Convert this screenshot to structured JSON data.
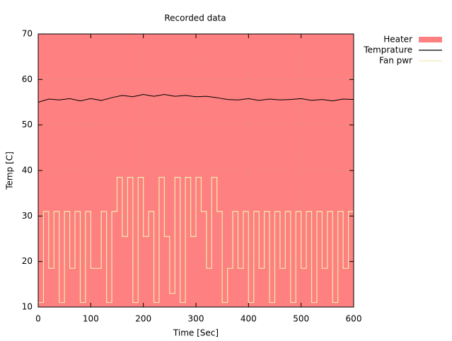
{
  "chart_data": {
    "type": "line",
    "title": "Recorded data",
    "x_label": "Time [Sec]",
    "y_label": "Temp [C]",
    "xlim": [
      0,
      600
    ],
    "ylim": [
      10,
      70
    ],
    "xticks": [
      0,
      100,
      200,
      300,
      400,
      500,
      600
    ],
    "yticks": [
      10,
      20,
      30,
      40,
      50,
      60,
      70
    ],
    "grid": true,
    "legend": "outside-top-right",
    "series": [
      {
        "name": "Heater",
        "color": "#ff8080",
        "style": "area",
        "x": [
          0,
          600
        ],
        "values": [
          70,
          70
        ]
      },
      {
        "name": "Temprature",
        "color": "#000000",
        "style": "line",
        "x": [
          0,
          20,
          40,
          60,
          80,
          100,
          120,
          140,
          160,
          180,
          200,
          220,
          240,
          260,
          280,
          300,
          320,
          340,
          360,
          380,
          400,
          420,
          440,
          460,
          480,
          500,
          520,
          540,
          560,
          580,
          600
        ],
        "values": [
          55.0,
          55.7,
          55.5,
          55.8,
          55.3,
          55.8,
          55.4,
          56.0,
          56.5,
          56.2,
          56.7,
          56.3,
          56.7,
          56.3,
          56.5,
          56.2,
          56.3,
          56.0,
          55.6,
          55.5,
          55.8,
          55.4,
          55.7,
          55.5,
          55.6,
          55.8,
          55.4,
          55.6,
          55.3,
          55.7,
          55.6
        ]
      },
      {
        "name": "Fan pwr",
        "color": "#f0ecb0",
        "style": "steps",
        "x": [
          0,
          10,
          20,
          30,
          40,
          50,
          60,
          70,
          80,
          90,
          100,
          110,
          120,
          130,
          140,
          150,
          160,
          170,
          180,
          190,
          200,
          210,
          220,
          230,
          240,
          250,
          260,
          270,
          280,
          290,
          300,
          310,
          320,
          330,
          340,
          350,
          360,
          370,
          380,
          390,
          400,
          410,
          420,
          430,
          440,
          450,
          460,
          470,
          480,
          490,
          500,
          510,
          520,
          530,
          540,
          550,
          560,
          570,
          580,
          590,
          600
        ],
        "values": [
          11,
          31,
          18.5,
          31,
          11,
          31,
          18.5,
          31,
          11,
          31,
          18.5,
          18.5,
          31,
          11,
          31,
          38.5,
          25.5,
          38.5,
          11,
          38.5,
          25.5,
          31,
          11,
          38.5,
          25.5,
          13,
          38.5,
          11,
          38.5,
          25.5,
          38.5,
          31,
          18.5,
          38.5,
          31,
          11,
          18.5,
          31,
          18.5,
          31,
          11,
          31,
          18.5,
          31,
          11,
          31,
          18.5,
          31,
          11,
          31,
          18.5,
          31,
          11,
          31,
          18.5,
          31,
          11,
          31,
          18.5,
          31,
          31
        ]
      }
    ]
  }
}
